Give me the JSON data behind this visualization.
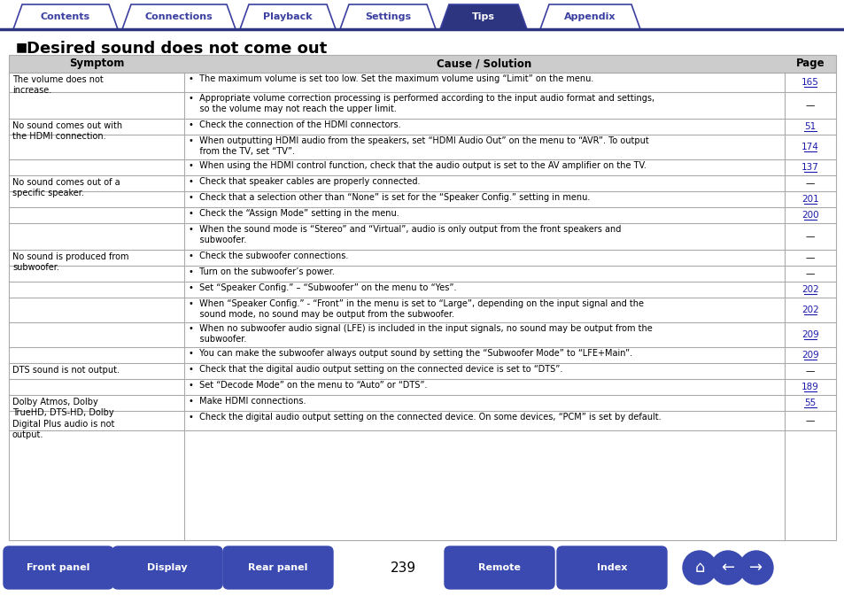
{
  "title": "Desired sound does not come out",
  "page_number": "239",
  "tab_labels": [
    "Contents",
    "Connections",
    "Playback",
    "Settings",
    "Tips",
    "Appendix"
  ],
  "active_tab": "Tips",
  "tab_color_active": "#2d3480",
  "tab_color_border": "#3b3fa0",
  "tab_text_active": "#ffffff",
  "tab_text_inactive": "#3b3fa0",
  "bottom_buttons": [
    "Front panel",
    "Display",
    "Rear panel",
    "Remote",
    "Index"
  ],
  "button_color": "#3b4ab0",
  "button_text_color": "#ffffff",
  "header_cols": [
    "Symptom",
    "Cause / Solution",
    "Page"
  ],
  "rows": [
    {
      "symptom": "The volume does not\nincrease.",
      "causes": [
        {
          "text": "•  The maximum volume is set too low. Set the maximum volume using “Limit” on the menu.",
          "page": "165"
        },
        {
          "text": "•  Appropriate volume correction processing is performed according to the input audio format and settings,\n    so the volume may not reach the upper limit.",
          "page": "—"
        }
      ]
    },
    {
      "symptom": "No sound comes out with\nthe HDMI connection.",
      "causes": [
        {
          "text": "•  Check the connection of the HDMI connectors.",
          "page": "51"
        },
        {
          "text": "•  When outputting HDMI audio from the speakers, set “HDMI Audio Out” on the menu to “AVR”. To output\n    from the TV, set “TV”.",
          "page": "174"
        },
        {
          "text": "•  When using the HDMI control function, check that the audio output is set to the AV amplifier on the TV.",
          "page": "137"
        }
      ]
    },
    {
      "symptom": "No sound comes out of a\nspecific speaker.",
      "causes": [
        {
          "text": "•  Check that speaker cables are properly connected.",
          "page": "—"
        },
        {
          "text": "•  Check that a selection other than “None” is set for the “Speaker Config.” setting in menu.",
          "page": "201"
        },
        {
          "text": "•  Check the “Assign Mode” setting in the menu.",
          "page": "200"
        },
        {
          "text": "•  When the sound mode is “Stereo” and “Virtual”, audio is only output from the front speakers and\n    subwoofer.",
          "page": "—"
        }
      ]
    },
    {
      "symptom": "No sound is produced from\nsubwoofer.",
      "causes": [
        {
          "text": "•  Check the subwoofer connections.",
          "page": "—"
        },
        {
          "text": "•  Turn on the subwoofer’s power.",
          "page": "—"
        },
        {
          "text": "•  Set “Speaker Config.” – “Subwoofer” on the menu to “Yes”.",
          "page": "202"
        },
        {
          "text": "•  When “Speaker Config.” - “Front” in the menu is set to “Large”, depending on the input signal and the\n    sound mode, no sound may be output from the subwoofer.",
          "page": "202"
        },
        {
          "text": "•  When no subwoofer audio signal (LFE) is included in the input signals, no sound may be output from the\n    subwoofer.",
          "page": "209"
        },
        {
          "text": "•  You can make the subwoofer always output sound by setting the “Subwoofer Mode” to “LFE+Main”.",
          "page": "209"
        }
      ]
    },
    {
      "symptom": "DTS sound is not output.",
      "causes": [
        {
          "text": "•  Check that the digital audio output setting on the connected device is set to “DTS”.",
          "page": "—"
        },
        {
          "text": "•  Set “Decode Mode” on the menu to “Auto” or “DTS”.",
          "page": "189"
        }
      ]
    },
    {
      "symptom": "Dolby Atmos, Dolby\nTrueHD, DTS-HD, Dolby\nDigital Plus audio is not\noutput.",
      "causes": [
        {
          "text": "•  Make HDMI connections.",
          "page": "55"
        },
        {
          "text": "•  Check the digital audio output setting on the connected device. On some devices, “PCM” is set by default.",
          "page": "—"
        }
      ]
    }
  ],
  "cause_row_heights": [
    [
      22,
      30
    ],
    [
      18,
      28,
      18
    ],
    [
      18,
      18,
      18,
      30
    ],
    [
      18,
      18,
      18,
      28,
      28,
      18
    ],
    [
      18,
      18
    ],
    [
      18,
      22
    ]
  ],
  "bg_color": "#ffffff",
  "line_color": "#aaaaaa",
  "text_color": "#000000",
  "link_color": "#1a1aaa",
  "nav_line_color": "#2d3480"
}
